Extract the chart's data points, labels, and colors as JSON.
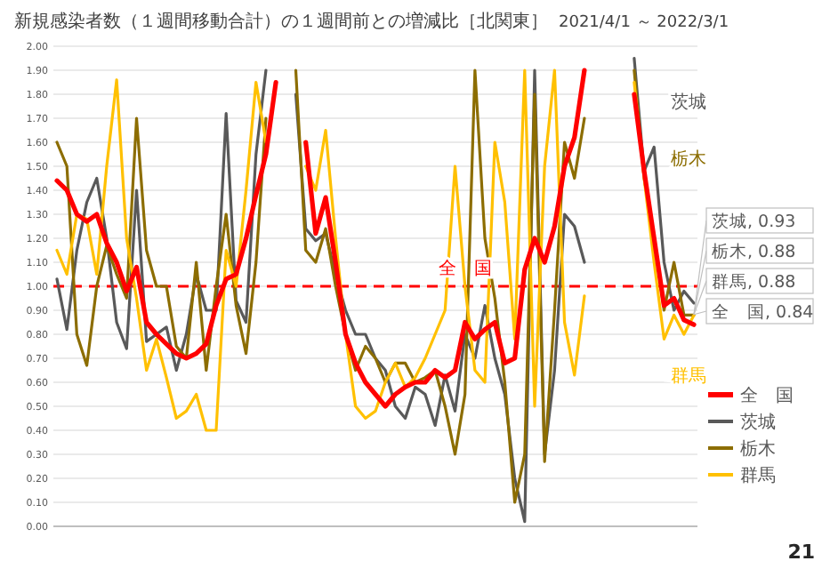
{
  "chart_data": {
    "type": "line",
    "title": "新規感染者数（１週間移動合計）の１週間前との増減比［北関東］",
    "subtitle": "2021/4/1 ～ 2022/3/1",
    "categories": [
      null,
      null,
      null,
      null,
      null,
      null,
      null,
      null,
      null,
      null,
      null,
      null,
      null,
      null,
      null,
      null,
      null,
      null,
      null,
      null,
      null,
      null,
      null,
      null,
      null,
      null,
      null,
      null,
      null,
      null,
      null,
      null,
      null,
      null,
      null,
      null,
      null,
      null,
      null,
      null,
      null,
      null,
      null,
      null,
      null,
      null,
      null,
      null,
      null,
      null,
      null,
      null,
      null,
      null,
      null,
      null,
      null,
      null,
      null,
      null,
      null,
      null,
      null,
      null,
      null
    ],
    "series": [
      {
        "name": "全　国",
        "color": "#ff0000",
        "values": [
          1.44,
          1.4,
          1.3,
          1.27,
          1.3,
          1.18,
          1.1,
          0.98,
          1.08,
          0.85,
          0.8,
          0.76,
          0.72,
          0.7,
          0.72,
          0.76,
          0.92,
          1.03,
          1.05,
          1.2,
          1.38,
          1.55,
          1.85,
          null,
          null,
          1.6,
          1.22,
          1.37,
          1.1,
          0.8,
          0.68,
          0.6,
          0.55,
          0.5,
          0.55,
          0.58,
          0.6,
          0.6,
          0.65,
          0.62,
          0.65,
          0.85,
          0.78,
          0.82,
          0.85,
          0.68,
          0.7,
          1.07,
          1.2,
          1.1,
          1.25,
          1.5,
          1.62,
          1.9,
          null,
          null,
          null,
          null,
          1.8,
          1.48,
          1.2,
          0.92,
          0.95,
          0.86,
          0.84
        ]
      },
      {
        "name": "茨城",
        "color": "#595959",
        "values": [
          1.03,
          0.82,
          1.15,
          1.35,
          1.45,
          1.2,
          0.85,
          0.74,
          1.4,
          0.77,
          0.8,
          0.83,
          0.65,
          0.8,
          1.05,
          0.9,
          0.9,
          1.72,
          0.94,
          0.85,
          1.55,
          1.9,
          null,
          null,
          1.8,
          1.24,
          1.19,
          1.22,
          1.05,
          0.9,
          0.8,
          0.8,
          0.7,
          0.65,
          0.5,
          0.45,
          0.58,
          0.55,
          0.42,
          0.63,
          0.48,
          0.8,
          0.7,
          0.92,
          0.7,
          0.55,
          0.2,
          0.02,
          1.9,
          0.3,
          0.65,
          1.3,
          1.25,
          1.1,
          null,
          null,
          null,
          null,
          1.95,
          1.48,
          1.58,
          1.1,
          0.9,
          0.98,
          0.93
        ]
      },
      {
        "name": "栃木",
        "color": "#8c6d00",
        "values": [
          1.6,
          1.5,
          0.8,
          0.67,
          1.0,
          1.17,
          1.05,
          0.95,
          1.7,
          1.15,
          1.0,
          1.0,
          0.75,
          0.7,
          1.1,
          0.65,
          1.0,
          1.3,
          0.92,
          0.72,
          1.1,
          1.7,
          null,
          null,
          1.9,
          1.15,
          1.1,
          1.24,
          1.0,
          0.8,
          0.65,
          0.75,
          0.7,
          0.6,
          0.68,
          0.68,
          0.6,
          0.62,
          0.65,
          0.5,
          0.3,
          0.55,
          1.9,
          1.2,
          0.95,
          0.6,
          0.1,
          0.3,
          1.8,
          0.27,
          0.9,
          1.6,
          1.45,
          1.7,
          null,
          null,
          null,
          null,
          1.9,
          1.45,
          1.2,
          0.9,
          1.1,
          0.88,
          0.88
        ]
      },
      {
        "name": "群馬",
        "color": "#ffc000",
        "values": [
          1.15,
          1.05,
          1.3,
          1.28,
          1.05,
          1.5,
          1.86,
          1.2,
          0.95,
          0.65,
          0.78,
          0.62,
          0.45,
          0.48,
          0.55,
          0.4,
          0.4,
          1.15,
          1.0,
          1.4,
          1.85,
          1.6,
          null,
          null,
          null,
          1.5,
          1.4,
          1.65,
          1.2,
          0.8,
          0.5,
          0.45,
          0.48,
          0.6,
          0.68,
          0.58,
          0.62,
          0.7,
          0.8,
          0.9,
          1.5,
          1.0,
          0.65,
          0.6,
          1.6,
          1.35,
          0.78,
          1.9,
          0.5,
          1.5,
          1.9,
          0.85,
          0.63,
          0.96,
          null,
          null,
          null,
          null,
          1.85,
          1.45,
          1.1,
          0.78,
          0.88,
          0.8,
          0.88
        ]
      }
    ],
    "ylim": [
      0,
      2
    ],
    "yticks": [
      {
        "value": 0,
        "label": "0.00"
      },
      {
        "value": 0.1,
        "label": "0.10"
      },
      {
        "value": 0.2,
        "label": "0.20"
      },
      {
        "value": 0.3,
        "label": "0.30"
      },
      {
        "value": 0.4,
        "label": "0.40"
      },
      {
        "value": 0.5,
        "label": "0.50"
      },
      {
        "value": 0.6,
        "label": "0.60"
      },
      {
        "value": 0.7,
        "label": "0.70"
      },
      {
        "value": 0.8,
        "label": "0.80"
      },
      {
        "value": 0.9,
        "label": "0.90"
      },
      {
        "value": 1,
        "label": "1.00"
      },
      {
        "value": 1.1,
        "label": "1.10"
      },
      {
        "value": 1.2,
        "label": "1.20"
      },
      {
        "value": 1.3,
        "label": "1.30"
      },
      {
        "value": 1.4,
        "label": "1.40"
      },
      {
        "value": 1.5,
        "label": "1.50"
      },
      {
        "value": 1.6,
        "label": "1.60"
      },
      {
        "value": 1.7,
        "label": "1.70"
      },
      {
        "value": 1.8,
        "label": "1.80"
      },
      {
        "value": 1.9,
        "label": "1.90"
      },
      {
        "value": 2,
        "label": "2.00"
      }
    ],
    "grid": "y",
    "legend": "right",
    "marker": "none",
    "line_style": "solid",
    "ref_lines": [
      {
        "axis": "y",
        "value": 1,
        "label": "全　国",
        "color": "#ff0000",
        "line_style": "dashed"
      }
    ],
    "annotations": [
      "茨城, 0.93",
      "栃木, 0.88",
      "群馬, 0.88",
      "全　国, 0.84",
      "21"
    ]
  }
}
